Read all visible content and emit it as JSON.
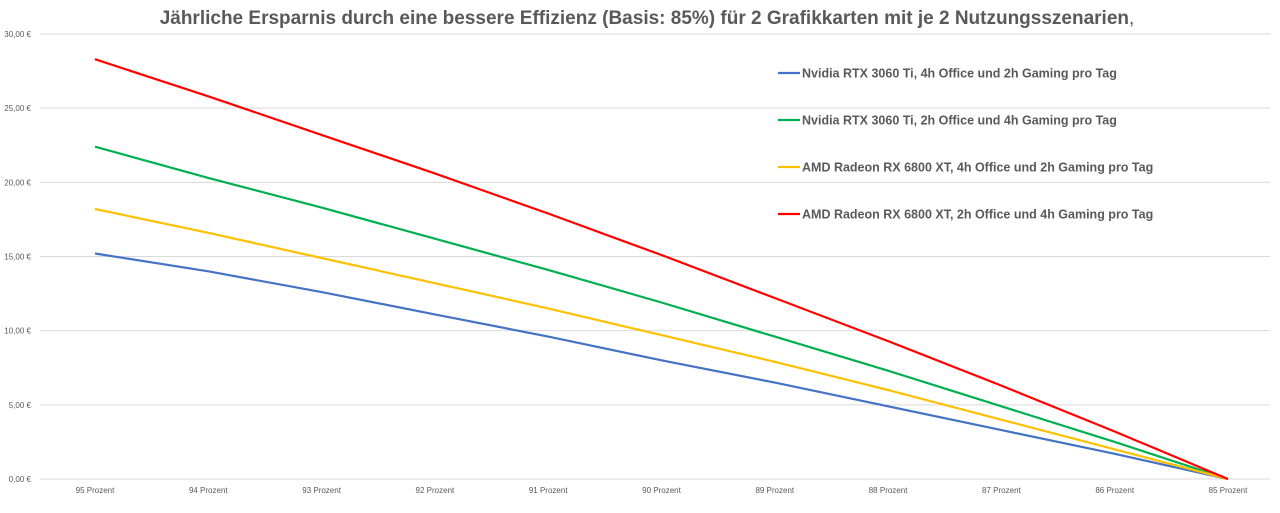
{
  "chart_data": {
    "type": "line",
    "title": "Jährliche Ersparnis durch eine bessere Effizienz (Basis: 85%) für 2 Grafikkarten mit je 2 Nutzungsszenarien",
    "title_suffix": ",",
    "xlabel": "",
    "ylabel": "",
    "categories": [
      "95 Prozent",
      "94 Prozent",
      "93 Prozent",
      "92 Prozent",
      "91 Prozent",
      "90 Prozent",
      "89 Prozent",
      "88 Prozent",
      "87 Prozent",
      "86 Prozent",
      "85 Prozent"
    ],
    "ylim": [
      0,
      30
    ],
    "y_ticks": [
      0,
      5,
      10,
      15,
      20,
      25,
      30
    ],
    "y_tick_labels": [
      "0,00 €",
      "5,00 €",
      "10,00 €",
      "15,00 €",
      "20,00 €",
      "25,00 €",
      "30,00 €"
    ],
    "grid": true,
    "legend_position": "top-right",
    "series": [
      {
        "name": "Nvidia RTX 3060 Ti, 4h Office und 2h Gaming pro Tag",
        "color": "#4472c4",
        "values": [
          15.2,
          14.0,
          12.6,
          11.1,
          9.6,
          8.0,
          6.5,
          4.9,
          3.3,
          1.7,
          0
        ]
      },
      {
        "name": "Nvidia RTX 3060 Ti, 2h Office und 4h Gaming pro Tag",
        "color": "#00b050",
        "values": [
          22.4,
          20.3,
          18.3,
          16.2,
          14.1,
          11.9,
          9.6,
          7.3,
          4.9,
          2.5,
          0
        ]
      },
      {
        "name": "AMD Radeon RX 6800 XT, 4h Office und 2h Gaming pro Tag",
        "color": "#ffc000",
        "values": [
          18.2,
          16.6,
          14.9,
          13.2,
          11.5,
          9.7,
          7.9,
          6.0,
          4.0,
          2.0,
          0
        ]
      },
      {
        "name": "AMD Radeon RX 6800 XT, 2h Office und 4h Gaming pro Tag",
        "color": "#ff0000",
        "values": [
          28.3,
          25.8,
          23.2,
          20.6,
          17.9,
          15.1,
          12.2,
          9.3,
          6.3,
          3.2,
          0
        ]
      }
    ]
  }
}
